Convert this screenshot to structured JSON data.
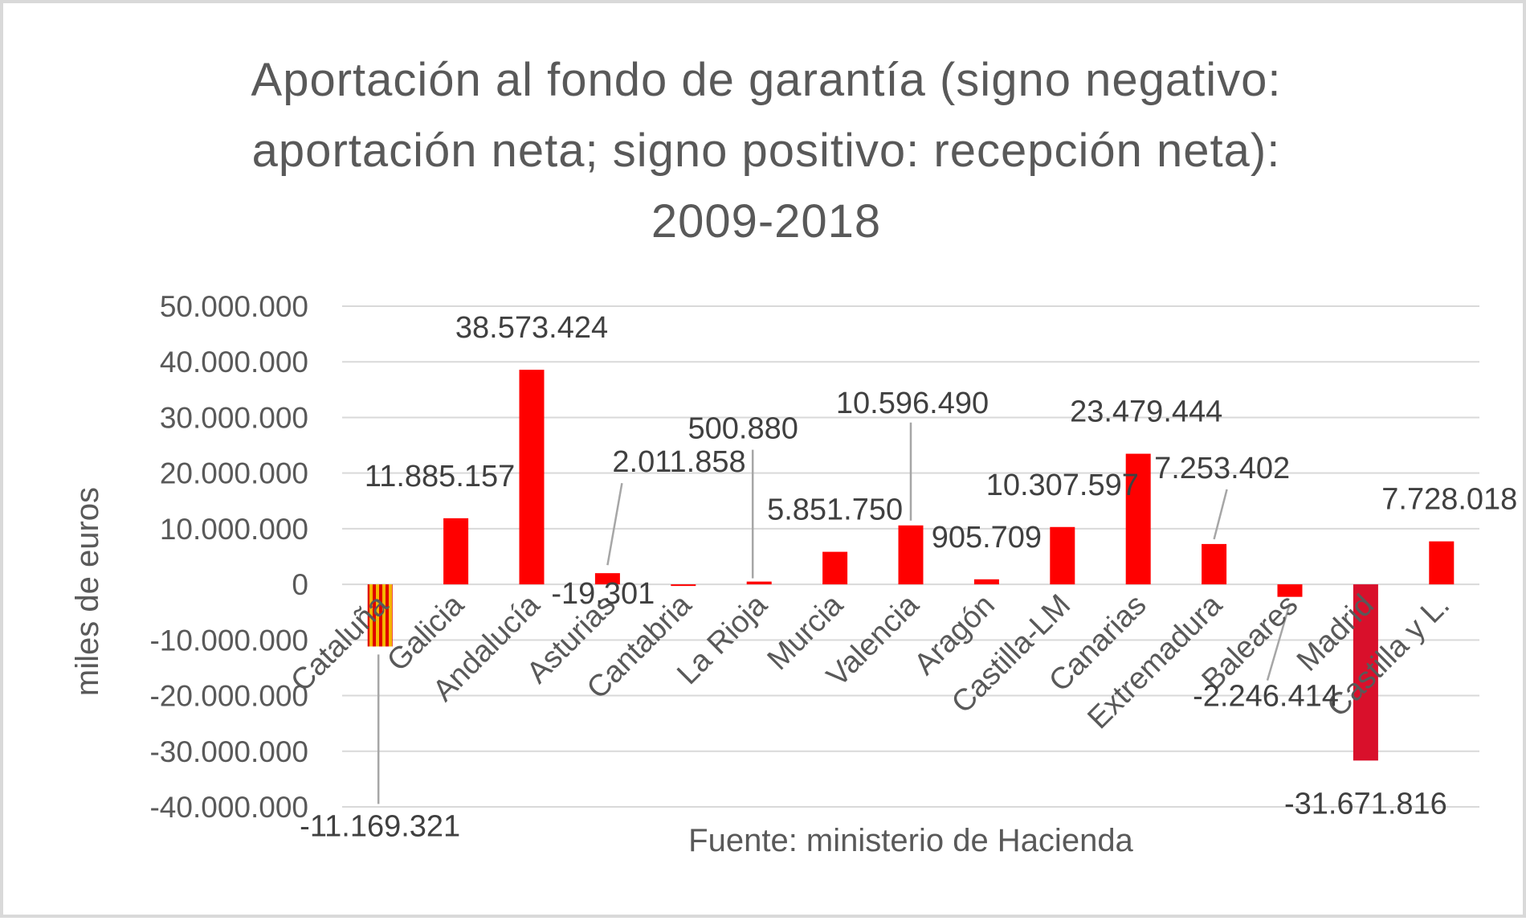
{
  "chart_data": {
    "type": "bar",
    "title_lines": [
      "Aportación al fondo de garantía (signo negativo:",
      "aportación neta; signo positivo: recepción neta):",
      "2009-2018"
    ],
    "ylabel": "miles de euros",
    "xlabel": "",
    "source_note": "Fuente: ministerio de Hacienda",
    "ylim": [
      -40000000,
      50000000
    ],
    "y_ticks": [
      50000000,
      40000000,
      30000000,
      20000000,
      10000000,
      0,
      -10000000,
      -20000000,
      -30000000,
      -40000000
    ],
    "y_tick_labels": [
      "50.000.000",
      "40.000.000",
      "30.000.000",
      "20.000.000",
      "10.000.000",
      "0",
      "-10.000.000",
      "-20.000.000",
      "-30.000.000",
      "-40.000.000"
    ],
    "grid": true,
    "legend": "none",
    "categories": [
      "Cataluña",
      "Galicia",
      "Andalucía",
      "Asturias",
      "Cantabria",
      "La Rioja",
      "Murcia",
      "Valencia",
      "Aragón",
      "Castilla-LM",
      "Canarias",
      "Extremadura",
      "Baleares",
      "Madrid",
      "Castilla y L."
    ],
    "values": [
      -11169321,
      11885157,
      38573424,
      2011858,
      -19301,
      500880,
      5851750,
      10596490,
      905709,
      10307597,
      23479444,
      7253402,
      -2246414,
      -31671816,
      7728018
    ],
    "data_labels": [
      "-11.169.321",
      "11.885.157",
      "38.573.424",
      "2.011.858",
      "-19.301",
      "500.880",
      "5.851.750",
      "10.596.490",
      "905.709",
      "10.307.597",
      "23.479.444",
      "7.253.402",
      "-2.246.414",
      "-31.671.816",
      "7.728.018"
    ],
    "colors": {
      "bar": "#ff0000",
      "cataluna_stripe_yellow": "#f5b700",
      "cataluna_stripe_red": "#e00000",
      "madrid_bar": "#d9102b",
      "grid": "#d9d9d9",
      "text": "#595959"
    }
  }
}
